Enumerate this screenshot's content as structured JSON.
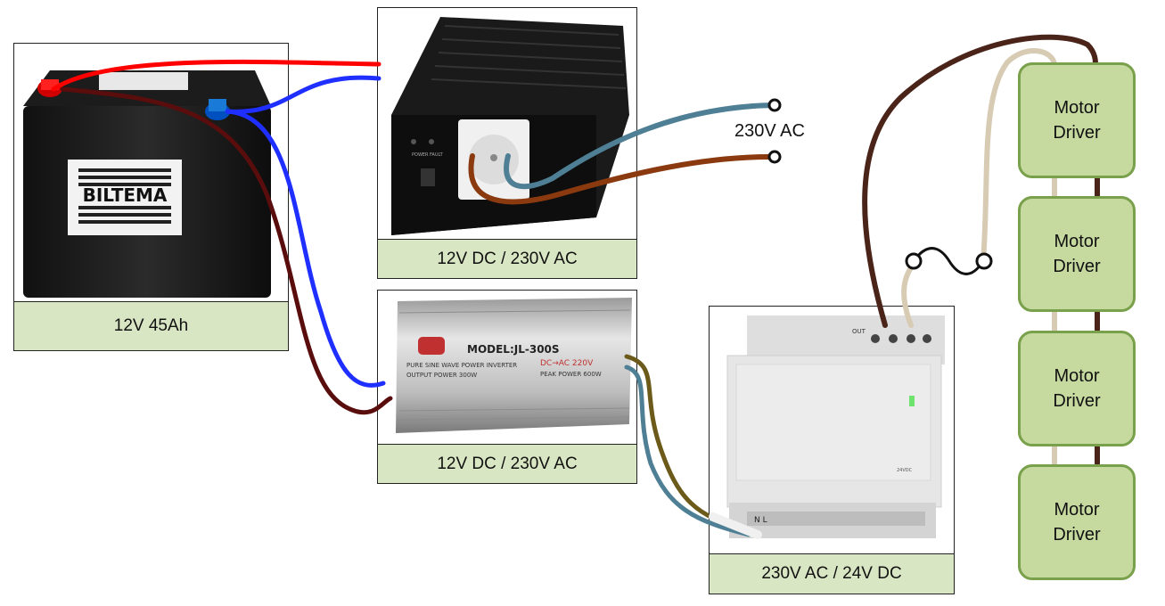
{
  "battery": {
    "caption": "12V 45Ah",
    "brand": "BILTEMA"
  },
  "inverter_top": {
    "caption": "12V DC / 230V AC",
    "switch_labels": [
      "POWER",
      "FAULT"
    ]
  },
  "inverter_bottom": {
    "caption": "12V DC / 230V AC",
    "model": "MODEL:JL-300S",
    "line1": "PURE SINE WAVE POWER INVERTER",
    "line2": "OUTPUT POWER 300W",
    "dc_ac": "DC→AC 220V",
    "peak": "PEAK POWER 600W"
  },
  "psu": {
    "caption": "230V AC / 24V DC",
    "out_label": "OUT",
    "in_label": "N L",
    "dc_label": "24VDC"
  },
  "ac_output_label": "230V AC",
  "motor_drivers": [
    {
      "label": "Motor\nDriver"
    },
    {
      "label": "Motor\nDriver"
    },
    {
      "label": "Motor\nDriver"
    },
    {
      "label": "Motor\nDriver"
    }
  ],
  "colors": {
    "caption_bg": "#d9e6c3",
    "driver_fill": "#c6daa0",
    "driver_border": "#79a04a",
    "wire_red": "#ff0000",
    "wire_blue": "#1f2fff",
    "wire_darkred": "#5a0d0d",
    "wire_steel": "#4f7f95",
    "wire_brown": "#8b3a10",
    "wire_darkbrown": "#4a2418",
    "wire_beige": "#d8cbb4",
    "wire_olive": "#6b5a1a"
  }
}
